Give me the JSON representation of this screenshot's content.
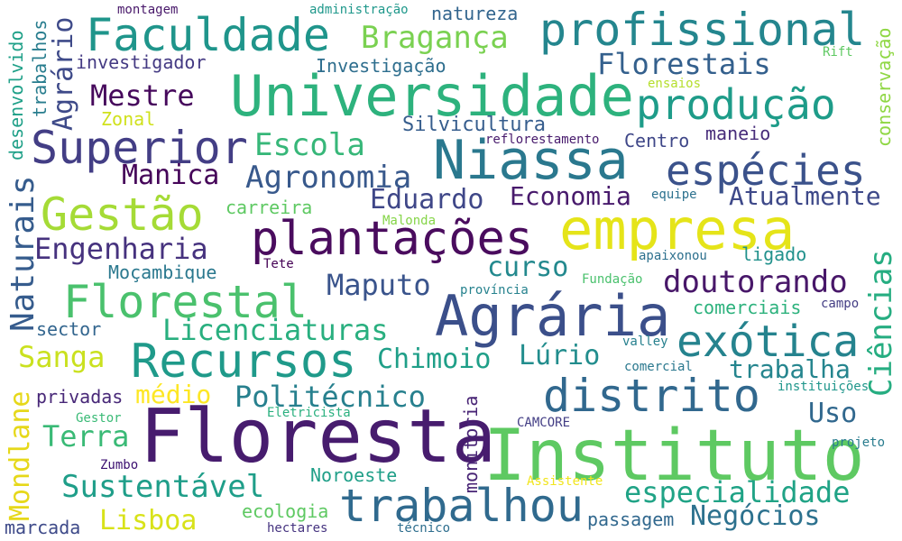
{
  "words": {
    "floresta": "Floresta",
    "instituto": "Instituto",
    "agraria": "Agrária",
    "empresa": "empresa",
    "universidade": "Universidade",
    "niassa": "Niassa",
    "plantacoes": "plantações",
    "recursos": "Recursos",
    "superior": "Superior",
    "distrito": "distrito",
    "trabalhou": "trabalhou",
    "florestal": "Florestal",
    "profissional": "profissional",
    "faculdade": "Faculdade",
    "especies": "espécies",
    "producao": "produção",
    "exotica": "exótica",
    "gestao": "Gestão",
    "naturais": "Naturais",
    "mondlane": "Mondlane",
    "ciencias": "Ciências",
    "agrario": "Agrário",
    "engenharia": "Engenharia",
    "licenciaturas": "Licenciaturas",
    "doutorando": "doutorando",
    "especialidade": "especialidade",
    "sustentavel": "Sustentável",
    "agronomia": "Agronomia",
    "politecnico": "Politécnico",
    "florestais": "Florestais",
    "braganca": "Bragança",
    "escola": "Escola",
    "mestre": "Mestre",
    "eduardo": "Eduardo",
    "economia": "Economia",
    "atualmente": "Atualmente",
    "manica": "Manica",
    "maputo": "Maputo",
    "lisboa": "Lisboa",
    "sanga": "Sanga",
    "terra": "Terra",
    "negocios": "Negócios",
    "chimoio": "Chimoio",
    "lurio": "Lúrio",
    "trabalha": "trabalha",
    "curso": "curso",
    "uso": "Uso",
    "medio": "médio",
    "silvicultura": "Silvicultura",
    "investigacao": "Investigação",
    "investigador": "investigador",
    "natureza": "natureza",
    "montagem": "montagem",
    "administracao": "administração",
    "desenvolvido": "desenvolvido",
    "trabalhos": "trabalhos",
    "conservacao": "conservação",
    "rift": "Rift",
    "ensaios": "ensaios",
    "zonal": "Zonal",
    "reflorestamento": "reflorestamento",
    "centro": "Centro",
    "maneio": "maneio",
    "equipe": "equipe",
    "carreira": "carreira",
    "malonda": "Malonda",
    "ligado": "ligado",
    "mocambique": "Moçambique",
    "tete": "Tete",
    "apaixonou": "apaixonou",
    "provincia": "província",
    "fundacao": "Fundação",
    "comerciais": "comerciais",
    "campo": "campo",
    "sector": "sector",
    "valley": "valley",
    "comercial": "comercial",
    "privadas": "privadas",
    "monitoria": "monitoria",
    "instituicoes": "instituições",
    "gestor": "Gestor",
    "eletricista": "Eletricista",
    "camcore": "CAMCORE",
    "projeto": "projeto",
    "zumbo": "Zumbo",
    "noroeste": "Noroeste",
    "assistente": "Assistente",
    "ecologia": "ecologia",
    "marcada": "marcada",
    "hectares": "hectares",
    "tecnico": "técnico",
    "passagem": "passagem"
  }
}
